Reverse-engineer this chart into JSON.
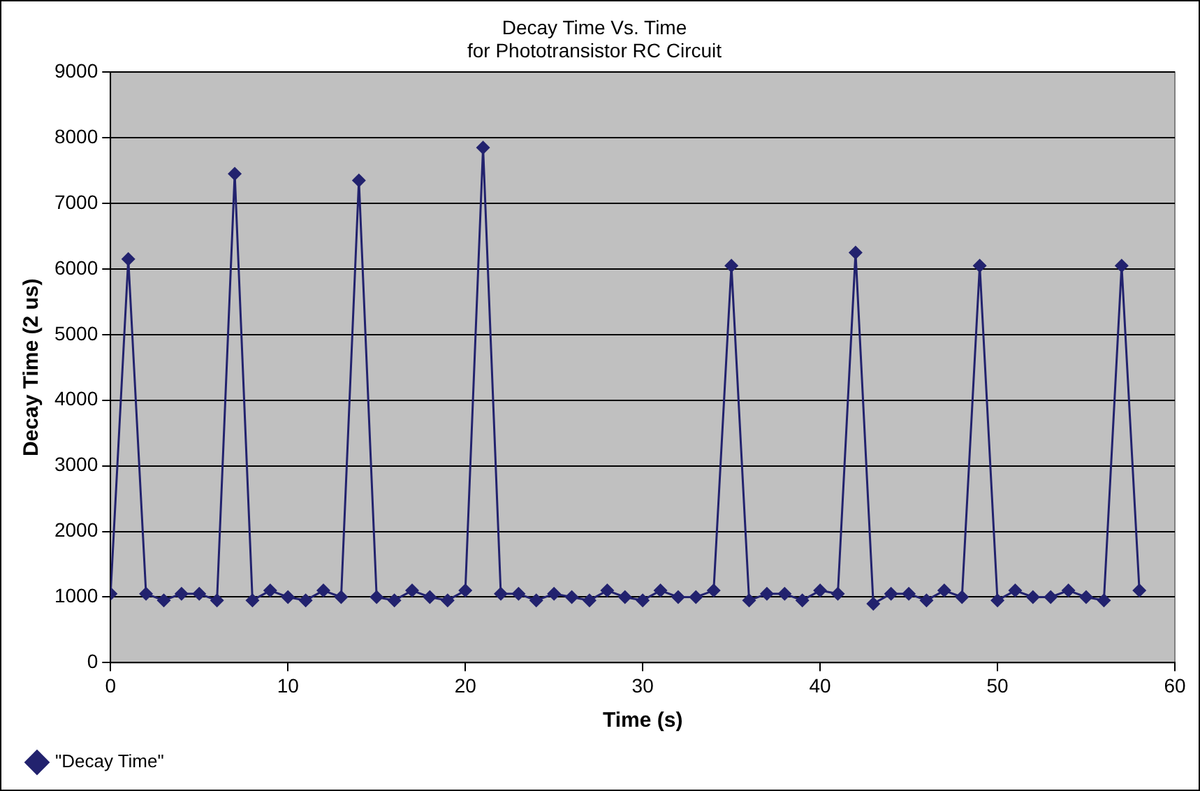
{
  "chart_data": {
    "type": "line",
    "title": "Decay Time Vs. Time\nfor Phototransistor RC Circuit",
    "xlabel": "Time (s)",
    "ylabel": "Decay Time (2 us)",
    "x": [
      0,
      1,
      2,
      3,
      4,
      5,
      6,
      7,
      8,
      9,
      10,
      11,
      12,
      13,
      14,
      15,
      16,
      17,
      18,
      19,
      20,
      21,
      22,
      23,
      24,
      25,
      26,
      27,
      28,
      29,
      30,
      31,
      32,
      33,
      34,
      35,
      36,
      37,
      38,
      39,
      40,
      41,
      42,
      43,
      44,
      45,
      46,
      47,
      48,
      49,
      50,
      51,
      52,
      53,
      54,
      55,
      56,
      57,
      58
    ],
    "series": [
      {
        "name": "\"Decay Time\"",
        "color": "#22226e",
        "values": [
          1050,
          6150,
          1050,
          950,
          1050,
          1050,
          950,
          7450,
          950,
          1100,
          1000,
          950,
          1100,
          1000,
          7350,
          1000,
          950,
          1100,
          1000,
          950,
          1100,
          7850,
          1050,
          1050,
          950,
          1050,
          1000,
          950,
          1100,
          1000,
          950,
          1100,
          1000,
          1000,
          1100,
          6050,
          950,
          1050,
          1050,
          950,
          1100,
          1050,
          6250,
          900,
          1050,
          1050,
          950,
          1100,
          1000,
          6050,
          950,
          1100,
          1000,
          1000,
          1100,
          1000,
          950,
          6050,
          1100
        ]
      }
    ],
    "xlim": [
      0,
      60
    ],
    "xticks": [
      0,
      10,
      20,
      30,
      40,
      50,
      60
    ],
    "ylim": [
      0,
      9000
    ],
    "yticks": [
      0,
      1000,
      2000,
      3000,
      4000,
      5000,
      6000,
      7000,
      8000,
      9000
    ],
    "grid": "y",
    "legend": "bottom left",
    "marker": "diamond",
    "line_style": "solid"
  }
}
